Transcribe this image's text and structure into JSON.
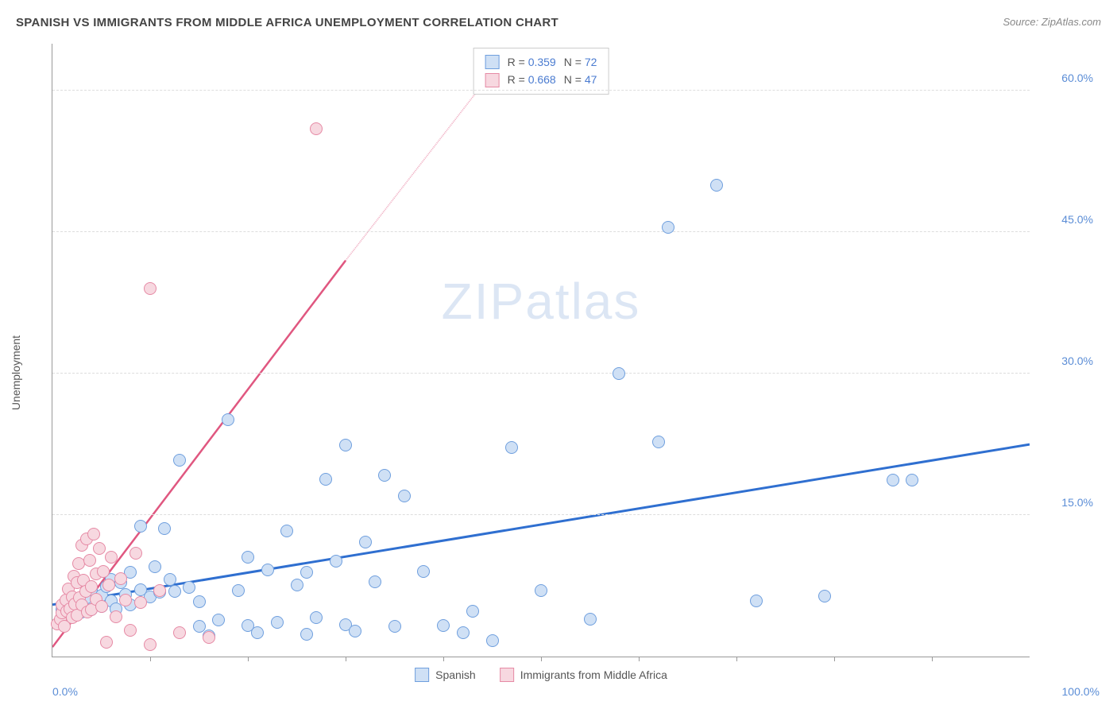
{
  "title": "SPANISH VS IMMIGRANTS FROM MIDDLE AFRICA UNEMPLOYMENT CORRELATION CHART",
  "source": "Source: ZipAtlas.com",
  "ylabel": "Unemployment",
  "watermark": {
    "strong": "ZIP",
    "light": "atlas"
  },
  "xlim": [
    0,
    100
  ],
  "ylim": [
    0,
    65
  ],
  "yticks": [
    {
      "v": 15,
      "label": "15.0%"
    },
    {
      "v": 30,
      "label": "30.0%"
    },
    {
      "v": 45,
      "label": "45.0%"
    },
    {
      "v": 60,
      "label": "60.0%"
    }
  ],
  "xticks_minor": [
    10,
    20,
    30,
    40,
    50,
    60,
    70,
    80,
    90
  ],
  "xtick_labels": {
    "min": "0.0%",
    "max": "100.0%"
  },
  "marker_radius": 8,
  "marker_border_width": 1.3,
  "series": [
    {
      "name": "Spanish",
      "fill": "#cfe0f5",
      "border": "#6f9fde",
      "line_color": "#2f6fd0",
      "line_width": 3,
      "R": "0.359",
      "N": "72",
      "trend": {
        "x1": 0,
        "y1": 5.5,
        "x2": 100,
        "y2": 22.5,
        "dash": "none"
      },
      "points": [
        [
          1,
          5
        ],
        [
          1.5,
          5.3
        ],
        [
          2,
          5.2
        ],
        [
          2,
          6
        ],
        [
          2.5,
          5.1
        ],
        [
          3,
          4.7
        ],
        [
          3,
          5.6
        ],
        [
          3.5,
          6.2
        ],
        [
          4,
          5.0
        ],
        [
          4,
          7.1
        ],
        [
          5,
          5.3
        ],
        [
          5,
          6.5
        ],
        [
          5.5,
          7.4
        ],
        [
          6,
          5.9
        ],
        [
          6,
          8.2
        ],
        [
          6.5,
          5.1
        ],
        [
          7,
          7.8
        ],
        [
          7.5,
          6.6
        ],
        [
          8,
          8.9
        ],
        [
          8,
          5.5
        ],
        [
          9,
          13.8
        ],
        [
          9,
          7.1
        ],
        [
          10,
          6.3
        ],
        [
          10.5,
          9.5
        ],
        [
          11,
          6.8
        ],
        [
          11.5,
          13.6
        ],
        [
          12,
          8.2
        ],
        [
          12.5,
          6.9
        ],
        [
          13,
          20.8
        ],
        [
          14,
          7.3
        ],
        [
          15,
          3.2
        ],
        [
          15,
          5.8
        ],
        [
          16,
          2.2
        ],
        [
          17,
          3.9
        ],
        [
          18,
          25.1
        ],
        [
          19,
          7.0
        ],
        [
          20,
          3.3
        ],
        [
          20,
          10.5
        ],
        [
          21,
          2.5
        ],
        [
          22,
          9.2
        ],
        [
          23,
          3.6
        ],
        [
          24,
          13.3
        ],
        [
          25,
          7.6
        ],
        [
          26,
          8.9
        ],
        [
          26,
          2.4
        ],
        [
          27,
          4.1
        ],
        [
          28,
          18.8
        ],
        [
          29,
          10.1
        ],
        [
          30,
          3.4
        ],
        [
          30,
          22.4
        ],
        [
          31,
          2.7
        ],
        [
          32,
          12.1
        ],
        [
          33,
          7.9
        ],
        [
          34,
          19.2
        ],
        [
          35,
          3.2
        ],
        [
          36,
          17.0
        ],
        [
          38,
          9.0
        ],
        [
          40,
          3.3
        ],
        [
          42,
          2.5
        ],
        [
          43,
          4.8
        ],
        [
          45,
          1.7
        ],
        [
          47,
          22.2
        ],
        [
          50,
          7.0
        ],
        [
          55,
          4.0
        ],
        [
          58,
          30.0
        ],
        [
          62,
          22.8
        ],
        [
          63,
          45.5
        ],
        [
          68,
          50.0
        ],
        [
          72,
          5.9
        ],
        [
          79,
          6.4
        ],
        [
          86,
          18.7
        ],
        [
          88,
          18.7
        ]
      ]
    },
    {
      "name": "Immigrants from Middle Africa",
      "fill": "#f7d8e0",
      "border": "#e68aa5",
      "line_color": "#e05780",
      "line_width": 2.5,
      "R": "0.668",
      "N": "47",
      "trend": {
        "x1": 0,
        "y1": 1.0,
        "x2": 30,
        "y2": 42.0,
        "dash_after_x": 30,
        "dash_end_x": 45,
        "dash_end_y": 62
      },
      "points": [
        [
          0.5,
          3.5
        ],
        [
          0.8,
          4.0
        ],
        [
          1,
          4.6
        ],
        [
          1,
          5.5
        ],
        [
          1.2,
          3.2
        ],
        [
          1.4,
          6.0
        ],
        [
          1.5,
          4.8
        ],
        [
          1.6,
          7.2
        ],
        [
          1.8,
          5.1
        ],
        [
          2,
          6.3
        ],
        [
          2,
          4.1
        ],
        [
          2.2,
          8.5
        ],
        [
          2.3,
          5.6
        ],
        [
          2.5,
          7.8
        ],
        [
          2.5,
          4.4
        ],
        [
          2.7,
          9.9
        ],
        [
          2.8,
          6.2
        ],
        [
          3,
          11.8
        ],
        [
          3,
          5.5
        ],
        [
          3.2,
          8.1
        ],
        [
          3.4,
          6.9
        ],
        [
          3.5,
          12.5
        ],
        [
          3.6,
          4.7
        ],
        [
          3.8,
          10.2
        ],
        [
          4,
          7.4
        ],
        [
          4,
          5.0
        ],
        [
          4.2,
          13.0
        ],
        [
          4.5,
          8.8
        ],
        [
          4.5,
          6.1
        ],
        [
          4.8,
          11.5
        ],
        [
          5,
          5.3
        ],
        [
          5.2,
          9.0
        ],
        [
          5.5,
          1.5
        ],
        [
          5.8,
          7.6
        ],
        [
          6,
          10.5
        ],
        [
          6.5,
          4.2
        ],
        [
          7,
          8.3
        ],
        [
          7.5,
          6.0
        ],
        [
          8,
          2.8
        ],
        [
          8.5,
          11.0
        ],
        [
          9,
          5.7
        ],
        [
          10,
          39.0
        ],
        [
          10,
          1.3
        ],
        [
          11,
          7.0
        ],
        [
          13,
          2.5
        ],
        [
          16,
          2.0
        ],
        [
          27,
          56.0
        ]
      ]
    }
  ],
  "stats_box": {
    "rows": [
      {
        "swatch_fill": "#cfe0f5",
        "swatch_border": "#6f9fde",
        "r_label": "R =",
        "r_val": "0.359",
        "n_label": "N =",
        "n_val": "72"
      },
      {
        "swatch_fill": "#f7d8e0",
        "swatch_border": "#e68aa5",
        "r_label": "R =",
        "r_val": "0.668",
        "n_label": "N =",
        "n_val": "47"
      }
    ]
  },
  "legend": [
    {
      "swatch_fill": "#cfe0f5",
      "swatch_border": "#6f9fde",
      "label": "Spanish"
    },
    {
      "swatch_fill": "#f7d8e0",
      "swatch_border": "#e68aa5",
      "label": "Immigrants from Middle Africa"
    }
  ]
}
